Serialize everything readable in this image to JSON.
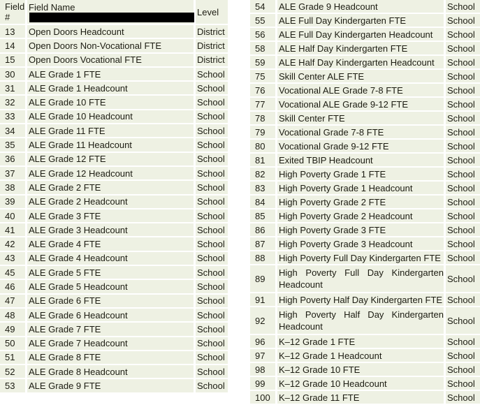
{
  "colors": {
    "cell_background": "#eef1e3",
    "grid_gap": "#ffffff",
    "text": "#1c1c12"
  },
  "table": {
    "header": {
      "field_number": "Field #",
      "field_name": "Field Name",
      "level": "Level"
    },
    "left_rows": [
      [
        "13",
        "Open Doors Headcount",
        "District"
      ],
      [
        "14",
        "Open Doors Non-Vocational FTE",
        "District"
      ],
      [
        "15",
        "Open Doors Vocational FTE",
        "District"
      ],
      [
        "30",
        "ALE Grade 1 FTE",
        "School"
      ],
      [
        "31",
        "ALE Grade 1 Headcount",
        "School"
      ],
      [
        "32",
        "ALE Grade 10 FTE",
        "School"
      ],
      [
        "33",
        "ALE Grade 10 Headcount",
        "School"
      ],
      [
        "34",
        "ALE Grade 11 FTE",
        "School"
      ],
      [
        "35",
        "ALE Grade 11 Headcount",
        "School"
      ],
      [
        "36",
        "ALE Grade 12 FTE",
        "School"
      ],
      [
        "37",
        "ALE Grade 12 Headcount",
        "School"
      ],
      [
        "38",
        "ALE Grade 2 FTE",
        "School"
      ],
      [
        "39",
        "ALE Grade 2 Headcount",
        "School"
      ],
      [
        "40",
        "ALE Grade 3 FTE",
        "School"
      ],
      [
        "41",
        "ALE Grade 3 Headcount",
        "School"
      ],
      [
        "42",
        "ALE Grade 4 FTE",
        "School"
      ],
      [
        "43",
        "ALE Grade 4 Headcount",
        "School"
      ],
      [
        "45",
        "ALE Grade 5 FTE",
        "School"
      ],
      [
        "46",
        "ALE Grade 5 Headcount",
        "School"
      ],
      [
        "47",
        "ALE Grade 6 FTE",
        "School"
      ],
      [
        "48",
        "ALE Grade 6 Headcount",
        "School"
      ],
      [
        "49",
        "ALE Grade 7 FTE",
        "School"
      ],
      [
        "50",
        "ALE Grade 7 Headcount",
        "School"
      ],
      [
        "51",
        "ALE Grade 8 FTE",
        "School"
      ],
      [
        "52",
        "ALE Grade 8 Headcount",
        "School"
      ],
      [
        "53",
        "ALE Grade 9 FTE",
        "School"
      ]
    ],
    "right_rows": [
      [
        "54",
        "ALE Grade 9 Headcount",
        "School"
      ],
      [
        "55",
        "ALE Full Day Kindergarten FTE",
        "School"
      ],
      [
        "56",
        "ALE Full Day Kindergarten Headcount",
        "School"
      ],
      [
        "58",
        "ALE Half Day Kindergarten FTE",
        "School"
      ],
      [
        "59",
        "ALE Half Day Kindergarten Headcount",
        "School"
      ],
      [
        "75",
        "Skill Center ALE FTE",
        "School"
      ],
      [
        "76",
        "Vocational ALE Grade 7-8 FTE",
        "School"
      ],
      [
        "77",
        "Vocational ALE Grade 9-12 FTE",
        "School"
      ],
      [
        "78",
        "Skill Center FTE",
        "School"
      ],
      [
        "79",
        "Vocational Grade 7-8 FTE",
        "School"
      ],
      [
        "80",
        "Vocational Grade 9-12 FTE",
        "School"
      ],
      [
        "81",
        "Exited TBIP Headcount",
        "School"
      ],
      [
        "82",
        "High Poverty Grade 1 FTE",
        "School"
      ],
      [
        "83",
        "High Poverty Grade 1 Headcount",
        "School"
      ],
      [
        "84",
        "High Poverty Grade 2 FTE",
        "School"
      ],
      [
        "85",
        "High Poverty Grade 2 Headcount",
        "School"
      ],
      [
        "86",
        "High Poverty Grade 3 FTE",
        "School"
      ],
      [
        "87",
        "High Poverty Grade 3 Headcount",
        "School"
      ],
      [
        "88",
        "High Poverty Full Day Kindergarten FTE",
        "School"
      ],
      [
        "89",
        "High Poverty Full Day Kindergarten Headcount",
        "School"
      ],
      [
        "91",
        "High Poverty Half Day Kindergarten FTE",
        "School"
      ],
      [
        "92",
        "High Poverty Half Day Kindergarten Headcount",
        "School"
      ],
      [
        "96",
        "K–12 Grade 1 FTE",
        "School"
      ],
      [
        "97",
        "K–12 Grade 1 Headcount",
        "School"
      ],
      [
        "98",
        "K–12 Grade 10 FTE",
        "School"
      ],
      [
        "99",
        "K–12 Grade 10 Headcount",
        "School"
      ],
      [
        "100",
        "K–12 Grade 11 FTE",
        "School"
      ]
    ]
  }
}
